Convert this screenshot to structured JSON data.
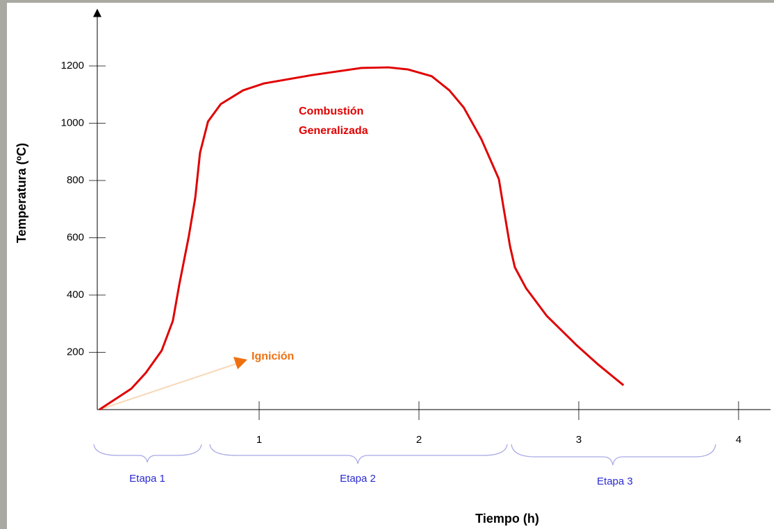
{
  "chart_data": {
    "type": "line",
    "y_label": "Temperatura (ºC)",
    "x_label": "Tiempo (h)",
    "x": [
      0,
      0.2,
      0.29,
      0.39,
      0.46,
      0.5,
      0.56,
      0.6,
      0.63,
      0.68,
      0.76,
      0.9,
      1.03,
      1.33,
      1.64,
      1.81,
      1.93,
      2.08,
      2.19,
      2.28,
      2.39,
      2.5,
      2.53,
      2.57,
      2.6,
      2.67,
      2.8,
      2.99,
      3.12,
      3.28
    ],
    "series": [
      {
        "color": "#e00000",
        "values": [
          0,
          73,
          128,
          206,
          310,
          436,
          606,
          739,
          897,
          1006,
          1067,
          1115,
          1139,
          1168,
          1193,
          1195,
          1188,
          1164,
          1115,
          1055,
          945,
          805,
          703,
          570,
          497,
          424,
          327,
          223,
          158,
          85
        ]
      }
    ],
    "xlim": [
      0,
      4.2
    ],
    "xticks": [
      1,
      2,
      3,
      4
    ],
    "ylim": [
      0,
      1400
    ],
    "yticks": [
      200,
      400,
      600,
      800,
      1000,
      1200
    ],
    "annotations": {
      "ignition": "Ignición",
      "combustion": [
        "Combustión",
        "Generalizada"
      ]
    },
    "stages": [
      "Etapa 1",
      "Etapa 2",
      "Etapa 3"
    ]
  }
}
